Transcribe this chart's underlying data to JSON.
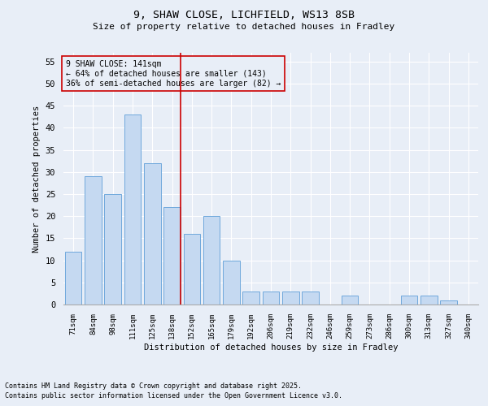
{
  "title1": "9, SHAW CLOSE, LICHFIELD, WS13 8SB",
  "title2": "Size of property relative to detached houses in Fradley",
  "xlabel": "Distribution of detached houses by size in Fradley",
  "ylabel": "Number of detached properties",
  "categories": [
    "71sqm",
    "84sqm",
    "98sqm",
    "111sqm",
    "125sqm",
    "138sqm",
    "152sqm",
    "165sqm",
    "179sqm",
    "192sqm",
    "206sqm",
    "219sqm",
    "232sqm",
    "246sqm",
    "259sqm",
    "273sqm",
    "286sqm",
    "300sqm",
    "313sqm",
    "327sqm",
    "340sqm"
  ],
  "values": [
    12,
    29,
    25,
    43,
    32,
    22,
    16,
    20,
    10,
    3,
    3,
    3,
    3,
    0,
    2,
    0,
    0,
    2,
    2,
    1,
    0
  ],
  "bar_color": "#c5d9f1",
  "bar_edge_color": "#6fa8dc",
  "background_color": "#e8eef7",
  "grid_color": "#ffffff",
  "annotation_line_color": "#cc0000",
  "annotation_line_index": 5,
  "annotation_box_text": "9 SHAW CLOSE: 141sqm\n← 64% of detached houses are smaller (143)\n36% of semi-detached houses are larger (82) →",
  "annotation_box_edge_color": "#cc0000",
  "ylim": [
    0,
    57
  ],
  "yticks": [
    0,
    5,
    10,
    15,
    20,
    25,
    30,
    35,
    40,
    45,
    50,
    55
  ],
  "footnote1": "Contains HM Land Registry data © Crown copyright and database right 2025.",
  "footnote2": "Contains public sector information licensed under the Open Government Licence v3.0."
}
